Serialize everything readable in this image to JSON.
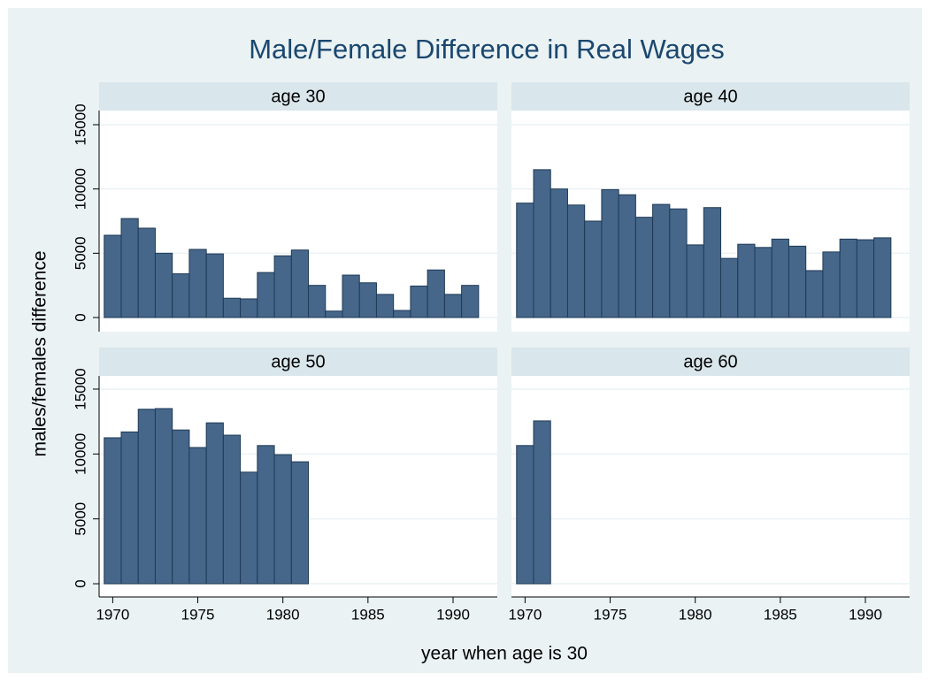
{
  "chart_data": {
    "type": "bar",
    "title": "Male/Female Difference in Real Wages",
    "x_label": "year when age is 30",
    "y_label": "males/females difference",
    "color": "#46678a",
    "grid": true,
    "xlim": [
      1969.2,
      1992.6
    ],
    "xticks": [
      1970,
      1975,
      1980,
      1985,
      1990
    ],
    "panels": [
      {
        "title": "age 30",
        "x": [
          1970,
          1971,
          1972,
          1973,
          1974,
          1975,
          1976,
          1977,
          1978,
          1979,
          1980,
          1981,
          1982,
          1983,
          1984,
          1985,
          1986,
          1987,
          1988,
          1989,
          1990,
          1991
        ],
        "values": [
          6400,
          7700,
          6950,
          5000,
          3400,
          5300,
          4950,
          1500,
          1450,
          3500,
          4800,
          5250,
          2500,
          500,
          3300,
          2700,
          1800,
          550,
          2450,
          3700,
          1800,
          2500
        ],
        "ylim": [
          -1100,
          16100
        ],
        "yticks": [
          0,
          5000,
          10000,
          15000
        ]
      },
      {
        "title": "age 40",
        "x": [
          1970,
          1971,
          1972,
          1973,
          1974,
          1975,
          1976,
          1977,
          1978,
          1979,
          1980,
          1981,
          1982,
          1983,
          1984,
          1985,
          1986,
          1987,
          1988,
          1989,
          1990,
          1991
        ],
        "values": [
          8900,
          11500,
          10000,
          8750,
          7500,
          9950,
          9550,
          7800,
          8800,
          8450,
          5650,
          8550,
          4600,
          5700,
          5450,
          6100,
          5550,
          3650,
          5100,
          6100,
          6050,
          6200
        ],
        "ylim": [
          -1100,
          16100
        ],
        "yticks": [
          0,
          5000,
          10000,
          15000
        ]
      },
      {
        "title": "age 50",
        "x": [
          1970,
          1971,
          1972,
          1973,
          1974,
          1975,
          1976,
          1977,
          1978,
          1979,
          1980,
          1981
        ],
        "values": [
          11250,
          11700,
          13450,
          13500,
          11850,
          10500,
          12400,
          11450,
          8600,
          10650,
          9950,
          9400
        ],
        "ylim": [
          -1020,
          16020
        ],
        "yticks": [
          0,
          5000,
          10000,
          15000
        ]
      },
      {
        "title": "age 60",
        "x": [
          1970,
          1971
        ],
        "values": [
          10650,
          12550
        ],
        "ylim": [
          -1020,
          16020
        ],
        "yticks": [
          0,
          5000,
          10000,
          15000
        ]
      }
    ]
  }
}
